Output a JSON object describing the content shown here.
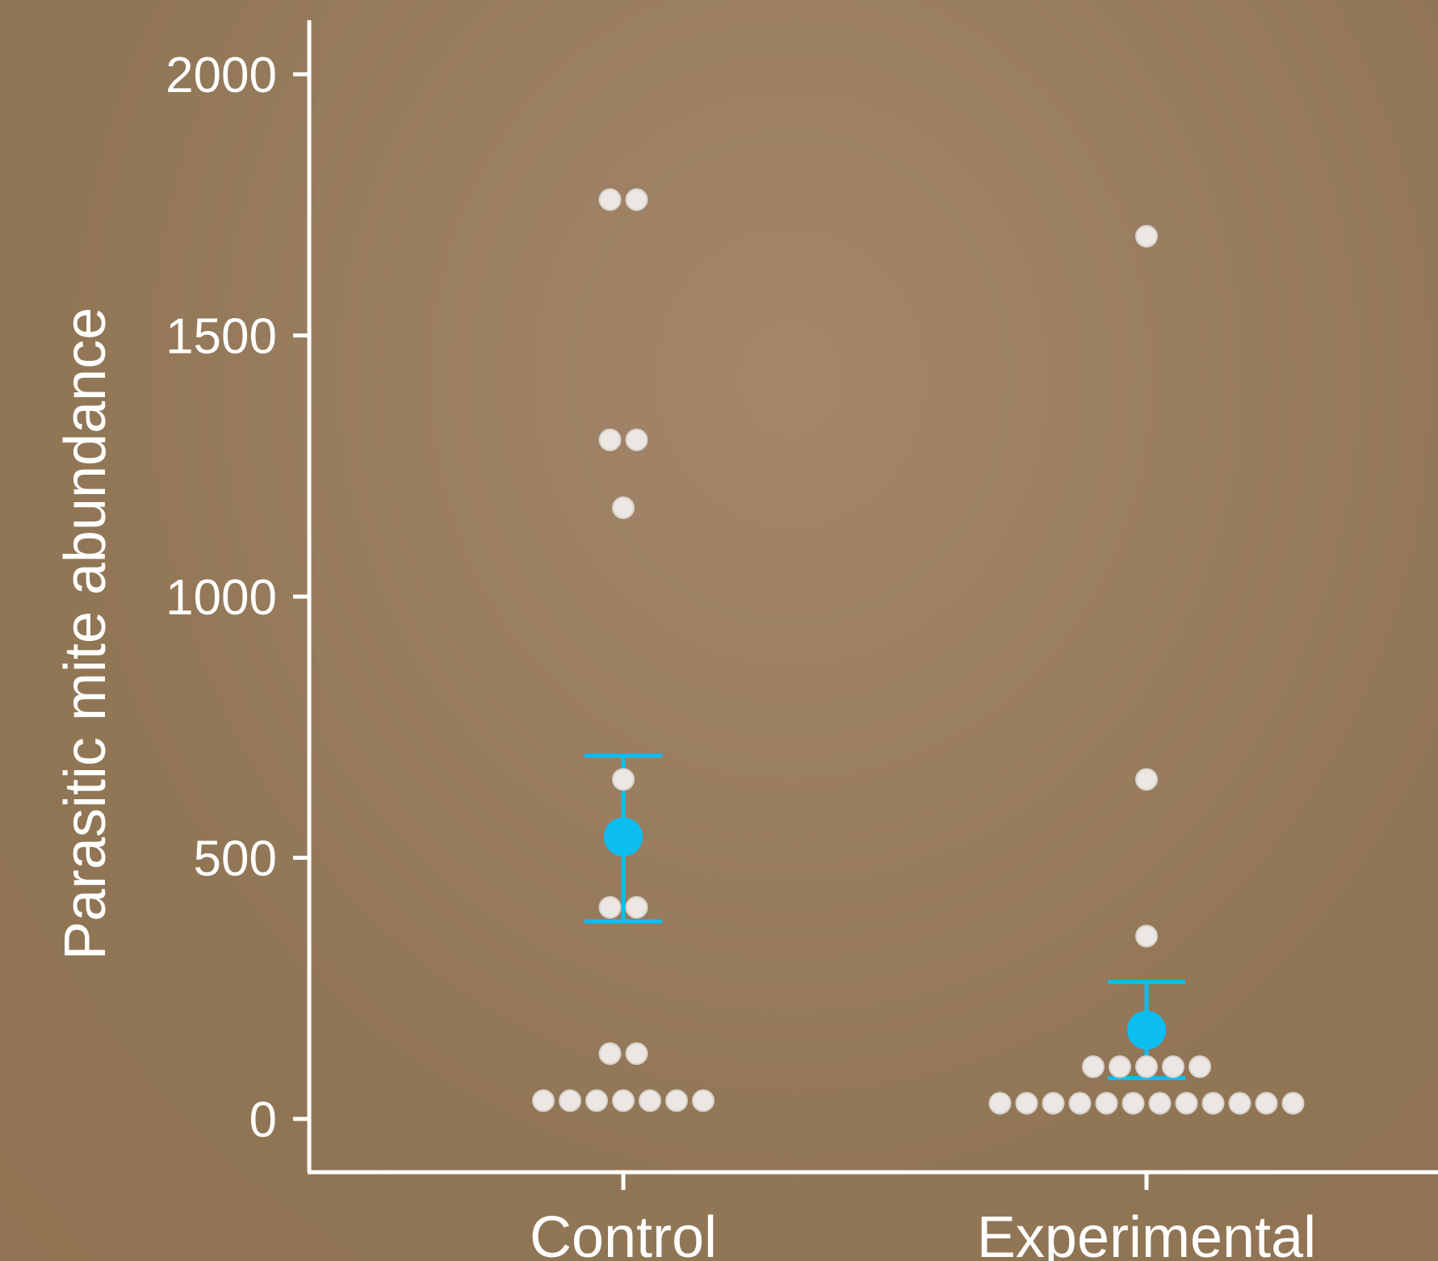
{
  "chart_data": {
    "type": "scatter",
    "title": "",
    "xlabel": "",
    "ylabel": "Parasitic mite abundance",
    "categories": [
      "Control",
      "Experimental"
    ],
    "ylim": [
      -100,
      2100
    ],
    "yticks": [
      "0",
      "500",
      "1000",
      "1500",
      "2000"
    ],
    "grid": false,
    "legend": "none",
    "points": [
      {
        "category": "Control",
        "values": [
          1760,
          1760,
          1300,
          1300,
          1170,
          650,
          405,
          405,
          125,
          125,
          35,
          35,
          35,
          35,
          35,
          35,
          35
        ]
      },
      {
        "category": "Experimental",
        "values": [
          1690,
          650,
          350,
          100,
          100,
          100,
          100,
          100,
          30,
          30,
          30,
          30,
          30,
          30,
          30,
          30,
          30,
          30,
          30,
          30
        ]
      }
    ],
    "summary": [
      {
        "category": "Control",
        "mean": 540,
        "lower": 378,
        "upper": 695
      },
      {
        "category": "Experimental",
        "mean": 170,
        "lower": 78,
        "upper": 262
      }
    ],
    "colors": {
      "points": "#ece7e2",
      "summary": "#0cbdf2",
      "axis": "#ffffff"
    }
  }
}
